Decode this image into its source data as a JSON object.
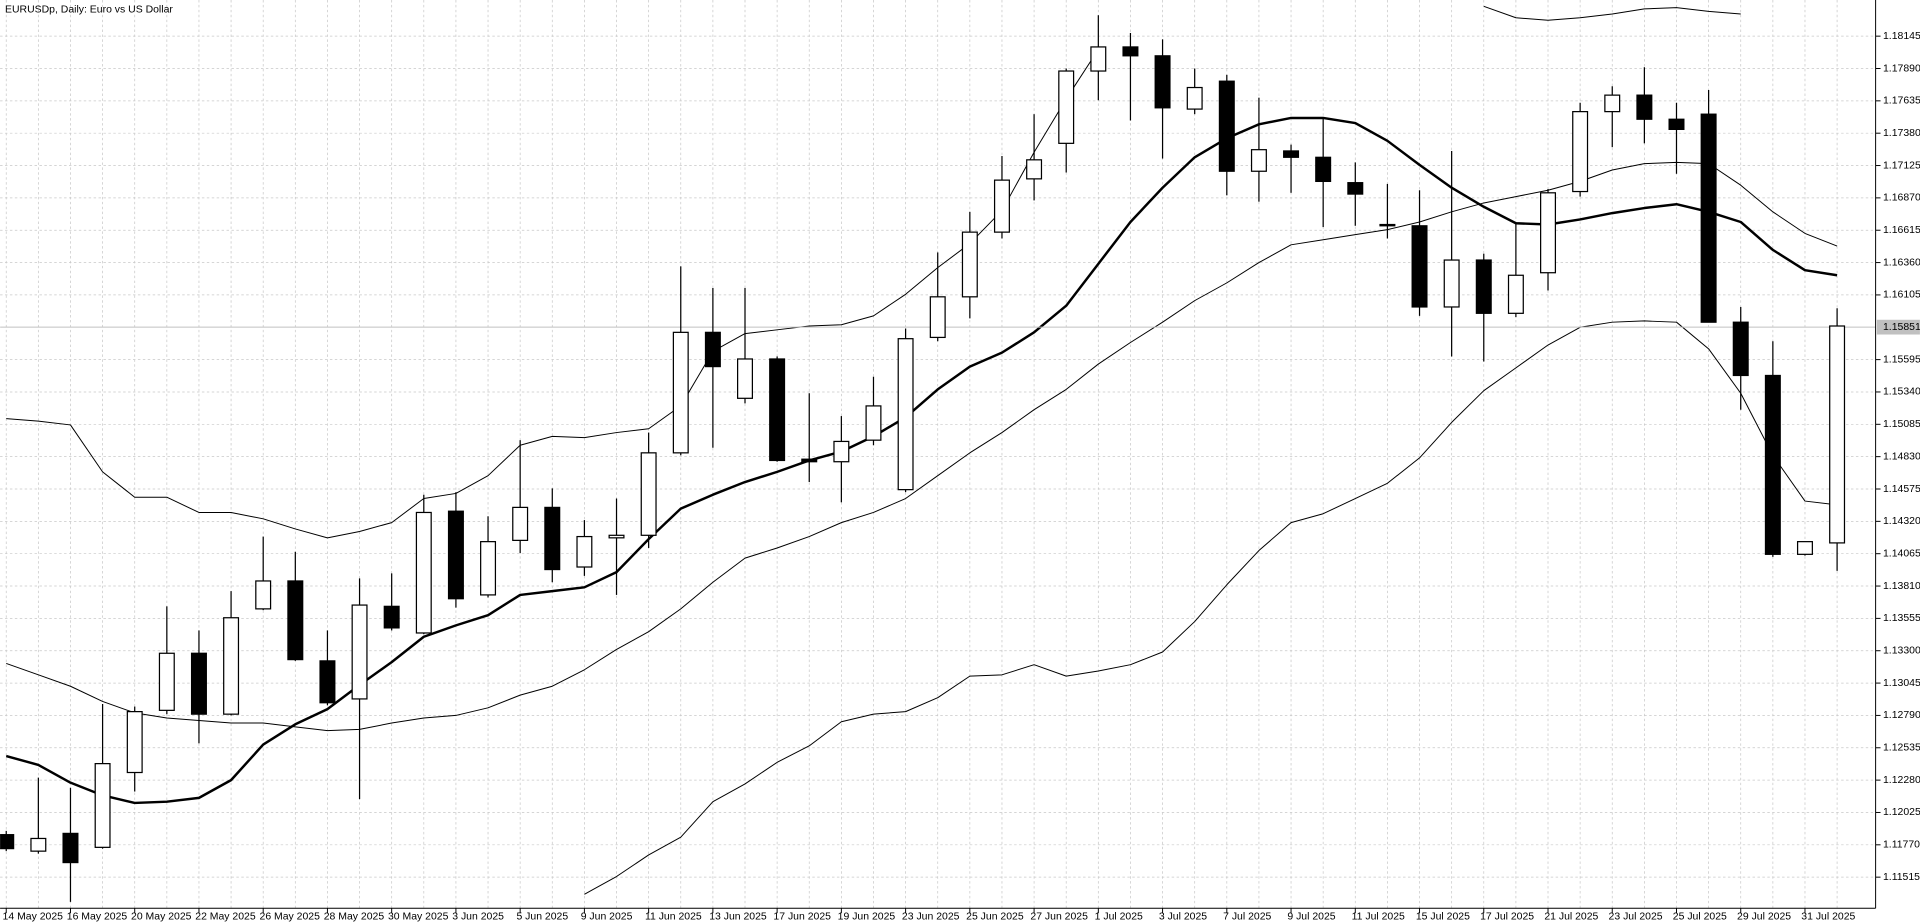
{
  "chart_data": {
    "type": "candlestick",
    "title": "EURUSDp, Daily:  Euro vs US Dollar",
    "categories": [
      "14 May 2025",
      null,
      "16 May 2025",
      null,
      "20 May 2025",
      null,
      "22 May 2025",
      null,
      "26 May 2025",
      null,
      "28 May 2025",
      null,
      "30 May 2025",
      null,
      "3 Jun 2025",
      null,
      "5 Jun 2025",
      null,
      "9 Jun 2025",
      null,
      "11 Jun 2025",
      null,
      "13 Jun 2025",
      null,
      "17 Jun 2025",
      null,
      "19 Jun 2025",
      null,
      "23 Jun 2025",
      null,
      "25 Jun 2025",
      null,
      "27 Jun 2025",
      null,
      "1 Jul 2025",
      null,
      "3 Jul 2025",
      null,
      "7 Jul 2025",
      null,
      "9 Jul 2025",
      null,
      "11 Jul 2025",
      null,
      "15 Jul 2025",
      null,
      "17 Jul 2025",
      null,
      "21 Jul 2025",
      null,
      "23 Jul 2025",
      null,
      "25 Jul 2025",
      null,
      "29 Jul 2025",
      null,
      "31 Jul 2025",
      null
    ],
    "open": [
      1.1185,
      1.1172,
      1.1186,
      1.1175,
      1.1234,
      1.1283,
      1.1328,
      1.128,
      1.1363,
      1.1385,
      1.1322,
      1.1292,
      1.1365,
      1.1344,
      1.144,
      1.1374,
      1.1417,
      1.1443,
      1.1396,
      1.1419,
      1.1421,
      1.1486,
      1.1581,
      1.1529,
      1.156,
      1.1481,
      1.1479,
      1.1496,
      1.1457,
      1.1577,
      1.1609,
      1.166,
      1.1702,
      1.173,
      1.1787,
      1.1806,
      1.1799,
      1.1757,
      1.1779,
      1.1708,
      1.1724,
      1.1719,
      1.1699,
      1.1666,
      1.1665,
      1.1601,
      1.1638,
      1.1596,
      1.1628,
      1.1692,
      1.1755,
      1.1768,
      1.1749,
      1.1753,
      1.1589,
      1.1547,
      1.1406,
      1.1415
    ],
    "high": [
      1.1188,
      1.123,
      1.1222,
      1.1288,
      1.1286,
      1.1365,
      1.1346,
      1.1377,
      1.142,
      1.1408,
      1.1346,
      1.1387,
      1.1391,
      1.1453,
      1.1455,
      1.1436,
      1.1496,
      1.1458,
      1.1433,
      1.145,
      1.1502,
      1.1633,
      1.1616,
      1.1616,
      1.1562,
      1.1533,
      1.1515,
      1.1546,
      1.1584,
      1.1644,
      1.1676,
      1.172,
      1.1753,
      1.1789,
      1.1831,
      1.1817,
      1.1812,
      1.1789,
      1.1784,
      1.1766,
      1.1729,
      1.175,
      1.1715,
      1.1698,
      1.1693,
      1.1724,
      1.1643,
      1.1668,
      1.1694,
      1.1762,
      1.1775,
      1.179,
      1.1762,
      1.1772,
      1.1601,
      1.1574,
      1.1416,
      1.16
    ],
    "low": [
      1.1172,
      1.117,
      1.1132,
      1.1174,
      1.1219,
      1.128,
      1.1257,
      1.1279,
      1.1362,
      1.1322,
      1.1287,
      1.1213,
      1.1346,
      1.1343,
      1.1364,
      1.1372,
      1.1407,
      1.1384,
      1.1389,
      1.1374,
      1.1411,
      1.1484,
      1.149,
      1.1525,
      1.1479,
      1.1463,
      1.1447,
      1.1492,
      1.1455,
      1.1574,
      1.1592,
      1.1655,
      1.1685,
      1.1707,
      1.1764,
      1.1748,
      1.1718,
      1.1753,
      1.1689,
      1.1684,
      1.1691,
      1.1664,
      1.1665,
      1.1655,
      1.1594,
      1.1562,
      1.1558,
      1.1593,
      1.1614,
      1.1688,
      1.1727,
      1.173,
      1.1706,
      1.1589,
      1.152,
      1.1404,
      1.1405,
      1.1393
    ],
    "close": [
      1.1174,
      1.1182,
      1.1163,
      1.1241,
      1.1282,
      1.1328,
      1.128,
      1.1356,
      1.1385,
      1.1323,
      1.1289,
      1.1366,
      1.1348,
      1.1439,
      1.1371,
      1.1416,
      1.1443,
      1.1394,
      1.142,
      1.1421,
      1.1486,
      1.1581,
      1.1554,
      1.156,
      1.148,
      1.1479,
      1.1495,
      1.1523,
      1.1576,
      1.1609,
      1.166,
      1.1701,
      1.1717,
      1.1787,
      1.1806,
      1.1799,
      1.1758,
      1.1774,
      1.1708,
      1.1725,
      1.1719,
      1.17,
      1.169,
      1.1665,
      1.1601,
      1.1638,
      1.1596,
      1.1626,
      1.1691,
      1.1755,
      1.1768,
      1.1749,
      1.1741,
      1.1589,
      1.1547,
      1.1406,
      1.1416,
      1.1586
    ],
    "up_color": "#ffffff",
    "down_color": "#000000",
    "lines": [
      {
        "color": "#000000",
        "values": [
          1.1247,
          1.124,
          1.1226,
          1.1216,
          1.121,
          1.1211,
          1.1214,
          1.1228,
          1.1256,
          1.1272,
          1.1284,
          1.1303,
          1.1321,
          1.1341,
          1.135,
          1.1358,
          1.1374,
          1.1377,
          1.138,
          1.1392,
          1.1418,
          1.1442,
          1.1453,
          1.1463,
          1.1471,
          1.148,
          1.1487,
          1.1499,
          1.1514,
          1.1536,
          1.1554,
          1.1565,
          1.1581,
          1.1602,
          1.1635,
          1.1668,
          1.1695,
          1.1719,
          1.1734,
          1.1745,
          1.175,
          1.175,
          1.1746,
          1.1732,
          1.1713,
          1.1695,
          1.168,
          1.1667,
          1.1666,
          1.167,
          1.1675,
          1.1679,
          1.1682,
          1.1676,
          1.1668,
          1.1646,
          1.163,
          1.1626
        ]
      },
      {
        "color": "#000000",
        "values": [
          1.132,
          1.1311,
          1.1302,
          1.129,
          1.1281,
          1.1277,
          1.1275,
          1.1273,
          1.1273,
          1.127,
          1.1267,
          1.1268,
          1.1273,
          1.1277,
          1.1279,
          1.1285,
          1.1295,
          1.1302,
          1.1315,
          1.1331,
          1.1345,
          1.1363,
          1.1384,
          1.1403,
          1.1411,
          1.142,
          1.1431,
          1.1439,
          1.145,
          1.1468,
          1.1486,
          1.1502,
          1.152,
          1.1536,
          1.1556,
          1.1573,
          1.1589,
          1.1606,
          1.162,
          1.1636,
          1.165,
          1.1654,
          1.1658,
          1.1662,
          1.1668,
          1.1676,
          1.1683,
          1.1688,
          1.1693,
          1.17,
          1.1709,
          1.1714,
          1.1715,
          1.1714,
          1.1697,
          1.1676,
          1.1659,
          1.1649
        ]
      },
      {
        "color": "#000000",
        "values": [
          1.1513,
          1.1511,
          1.1508,
          1.1471,
          1.1451,
          1.1451,
          1.1439,
          1.1439,
          1.1434,
          1.1426,
          1.1419,
          1.1424,
          1.1431,
          1.145,
          1.1454,
          1.1468,
          1.1492,
          1.1499,
          1.1498,
          1.1502,
          1.1505,
          1.1523,
          1.1566,
          1.158,
          1.1583,
          1.1586,
          1.1587,
          1.1594,
          1.1611,
          1.1632,
          1.1651,
          1.1677,
          1.1723,
          1.1765,
          1.1804,
          null,
          null,
          null,
          null,
          null,
          null,
          null,
          null,
          null,
          null,
          null,
          1.1838,
          1.1829,
          1.1827,
          1.1829,
          1.1832,
          1.1836,
          1.1837,
          1.1834,
          1.1832,
          null,
          null,
          null
        ]
      },
      {
        "color": "#000000",
        "values": [
          null,
          null,
          null,
          null,
          null,
          null,
          null,
          null,
          null,
          null,
          null,
          null,
          null,
          null,
          null,
          null,
          null,
          null,
          1.1138,
          1.1152,
          1.1169,
          1.1183,
          1.1211,
          1.1225,
          1.1242,
          1.1255,
          1.1274,
          1.128,
          1.1282,
          1.1293,
          1.131,
          1.1311,
          1.1319,
          1.131,
          1.1314,
          1.1319,
          1.1329,
          1.1353,
          1.1382,
          1.1409,
          1.1431,
          1.1438,
          1.145,
          1.1462,
          1.1482,
          1.151,
          1.1535,
          1.1553,
          1.1571,
          1.1585,
          1.1589,
          1.159,
          1.1589,
          1.1568,
          1.1533,
          1.1484,
          1.1448,
          1.1445
        ]
      }
    ],
    "last_price": 1.15851,
    "ylim": [
      1.1127,
      1.1843
    ],
    "yticks": [
      {
        "value": 1.18145,
        "label": "1.18145"
      },
      {
        "value": 1.1789,
        "label": "1.17890"
      },
      {
        "value": 1.17635,
        "label": "1.17635"
      },
      {
        "value": 1.1738,
        "label": "1.17380"
      },
      {
        "value": 1.17125,
        "label": "1.17125"
      },
      {
        "value": 1.1687,
        "label": "1.16870"
      },
      {
        "value": 1.16615,
        "label": "1.16615"
      },
      {
        "value": 1.1636,
        "label": "1.16360"
      },
      {
        "value": 1.16105,
        "label": "1.16105"
      },
      {
        "value": 1.15595,
        "label": "1.15595"
      },
      {
        "value": 1.1534,
        "label": "1.15340"
      },
      {
        "value": 1.15085,
        "label": "1.15085"
      },
      {
        "value": 1.1483,
        "label": "1.14830"
      },
      {
        "value": 1.14575,
        "label": "1.14575"
      },
      {
        "value": 1.1432,
        "label": "1.14320"
      },
      {
        "value": 1.14065,
        "label": "1.14065"
      },
      {
        "value": 1.1381,
        "label": "1.13810"
      },
      {
        "value": 1.13555,
        "label": "1.13555"
      },
      {
        "value": 1.133,
        "label": "1.13300"
      },
      {
        "value": 1.13045,
        "label": "1.13045"
      },
      {
        "value": 1.1279,
        "label": "1.12790"
      },
      {
        "value": 1.12535,
        "label": "1.12535"
      },
      {
        "value": 1.1228,
        "label": "1.12280"
      },
      {
        "value": 1.12025,
        "label": "1.12025"
      },
      {
        "value": 1.1177,
        "label": "1.11770"
      },
      {
        "value": 1.11515,
        "label": "1.11515"
      }
    ],
    "grid": true
  }
}
